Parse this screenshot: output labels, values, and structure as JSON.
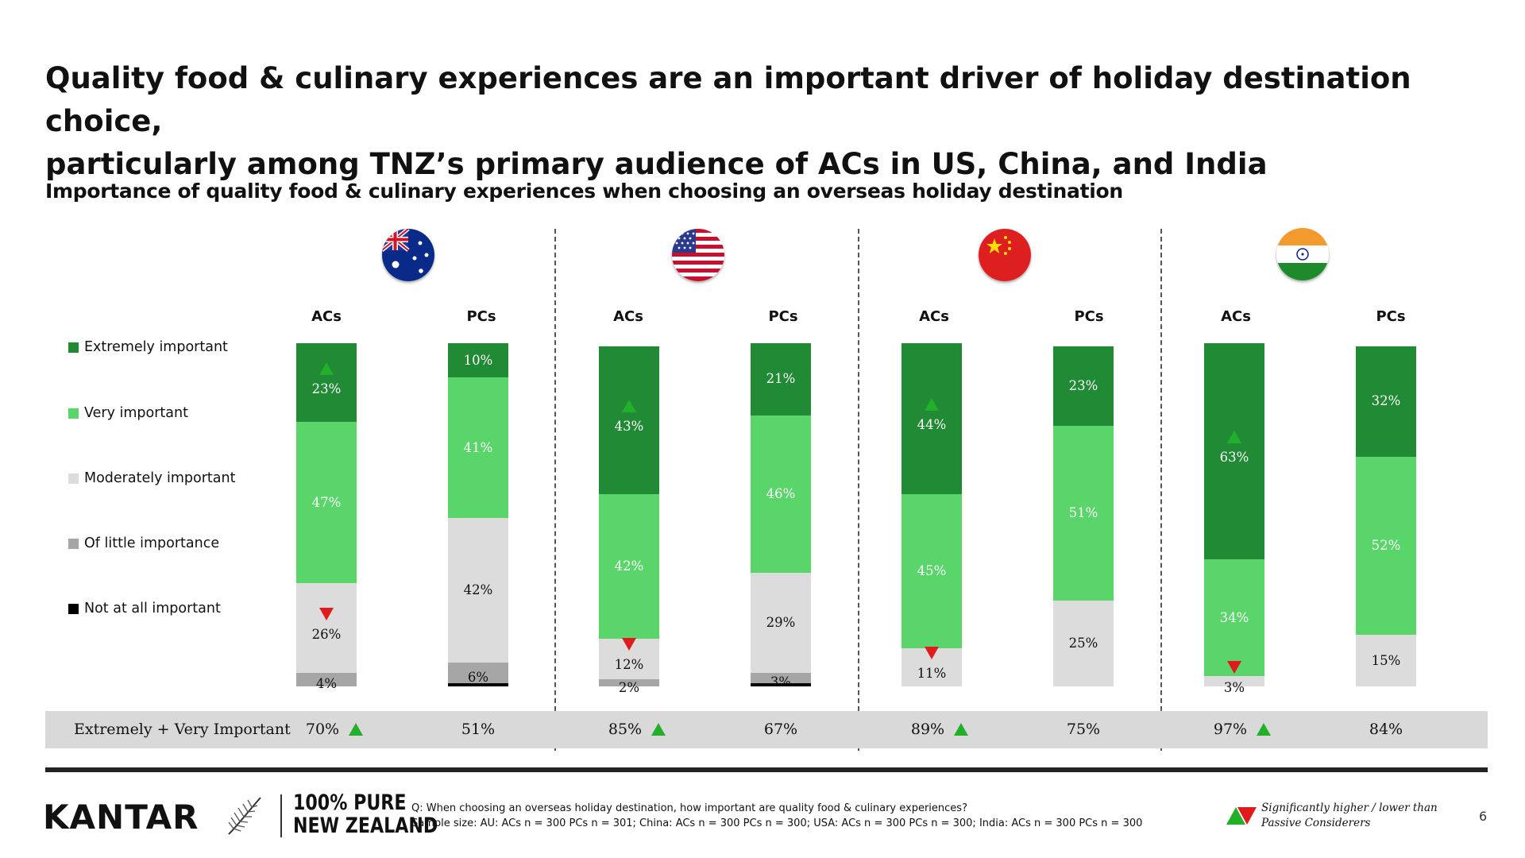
{
  "title_lines": [
    "Quality food & culinary experiences are an important driver of holiday destination choice,",
    "particularly among TNZ’s primary audience of ACs in US, China, and India"
  ],
  "subtitle": "Importance of quality food & culinary experiences when choosing an overseas holiday destination",
  "colors": {
    "extremely": "#208a35",
    "very": "#5ad56a",
    "moderately": "#dcdcdc",
    "little": "#a6a6a6",
    "not_at_all": "#000000",
    "up_arrow": "#22b02a",
    "down_arrow": "#e01b1b"
  },
  "chart_data": {
    "type": "bar",
    "stacked": true,
    "unit": "%",
    "legend_placement": "left",
    "legend": [
      {
        "key": "extremely",
        "label": "Extremely important"
      },
      {
        "key": "very",
        "label": "Very important"
      },
      {
        "key": "moderately",
        "label": "Moderately important"
      },
      {
        "key": "little",
        "label": "Of little importance"
      },
      {
        "key": "not_at_all",
        "label": "Not at all important"
      }
    ],
    "groups": [
      {
        "flag": "australia-flag-icon",
        "bars": [
          {
            "label": "ACs",
            "values": {
              "extremely": 23,
              "very": 47,
              "moderately": 26,
              "little": 4,
              "not_at_all": 0
            },
            "labels": {
              "extremely": "23%",
              "very": "47%",
              "moderately": "26%",
              "little": "4%"
            },
            "arrows": {
              "extremely": "up",
              "moderately": "down"
            }
          },
          {
            "label": "PCs",
            "values": {
              "extremely": 10,
              "very": 41,
              "moderately": 42,
              "little": 6,
              "not_at_all": 1
            },
            "labels": {
              "extremely": "10%",
              "very": "41%",
              "moderately": "42%",
              "little": "6%"
            },
            "arrows": {}
          }
        ]
      },
      {
        "flag": "usa-flag-icon",
        "bars": [
          {
            "label": "ACs",
            "values": {
              "extremely": 43,
              "very": 42,
              "moderately": 12,
              "little": 2,
              "not_at_all": 0
            },
            "labels": {
              "extremely": "43%",
              "very": "42%",
              "moderately": "12%",
              "little": "2%"
            },
            "arrows": {
              "extremely": "up",
              "moderately": "down"
            }
          },
          {
            "label": "PCs",
            "values": {
              "extremely": 21,
              "very": 46,
              "moderately": 29,
              "little": 3,
              "not_at_all": 1
            },
            "labels": {
              "extremely": "21%",
              "very": "46%",
              "moderately": "29%",
              "little": "3%"
            },
            "arrows": {}
          }
        ]
      },
      {
        "flag": "china-flag-icon",
        "bars": [
          {
            "label": "ACs",
            "values": {
              "extremely": 44,
              "very": 45,
              "moderately": 11,
              "little": 0,
              "not_at_all": 0
            },
            "labels": {
              "extremely": "44%",
              "very": "45%",
              "moderately": "11%"
            },
            "arrows": {
              "extremely": "up",
              "moderately": "down"
            }
          },
          {
            "label": "PCs",
            "values": {
              "extremely": 23,
              "very": 51,
              "moderately": 25,
              "little": 0,
              "not_at_all": 0
            },
            "labels": {
              "extremely": "23%",
              "very": "51%",
              "moderately": "25%"
            },
            "arrows": {}
          }
        ]
      },
      {
        "flag": "india-flag-icon",
        "bars": [
          {
            "label": "ACs",
            "values": {
              "extremely": 63,
              "very": 34,
              "moderately": 3,
              "little": 0,
              "not_at_all": 0
            },
            "labels": {
              "extremely": "63%",
              "very": "34%",
              "moderately": "3%"
            },
            "arrows": {
              "extremely": "up",
              "moderately": "down"
            }
          },
          {
            "label": "PCs",
            "values": {
              "extremely": 32,
              "very": 52,
              "moderately": 15,
              "little": 0,
              "not_at_all": 0
            },
            "labels": {
              "extremely": "32%",
              "very": "52%",
              "moderately": "15%"
            },
            "arrows": {}
          }
        ]
      }
    ],
    "summary": {
      "label": "Extremely + Very Important",
      "values": [
        {
          "text": "70%",
          "arrow": "up"
        },
        {
          "text": "51%",
          "arrow": ""
        },
        {
          "text": "85%",
          "arrow": "up"
        },
        {
          "text": "67%",
          "arrow": ""
        },
        {
          "text": "89%",
          "arrow": "up"
        },
        {
          "text": "75%",
          "arrow": ""
        },
        {
          "text": "97%",
          "arrow": "up"
        },
        {
          "text": "84%",
          "arrow": ""
        }
      ]
    }
  },
  "footer": {
    "brand": "KANTAR",
    "logo_line1": "100% PURE",
    "logo_line2": "NEW ZEALAND",
    "question": "Q: When choosing an overseas holiday destination, how important are quality food & culinary experiences?",
    "sample": "Sample size: AU: ACs n = 300 PCs n = 301; China: ACs n = 300 PCs n = 300; USA: ACs n = 300 PCs n = 300; India: ACs n = 300 PCs n = 300",
    "sig_line1": "Significantly higher / lower than",
    "sig_line2": "Passive Considerers",
    "page_number": "6"
  }
}
